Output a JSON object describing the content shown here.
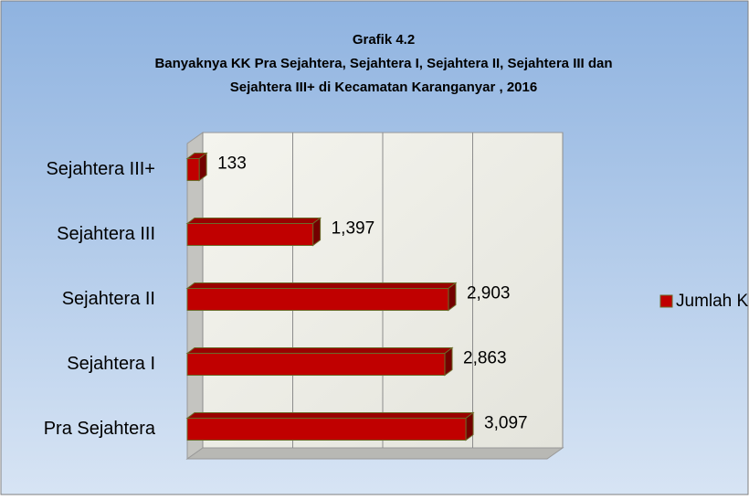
{
  "chart_data": {
    "type": "bar",
    "title": [
      "Grafik 4.2",
      "Banyaknya KK Pra Sejahtera, Sejahtera I, Sejahtera II, Sejahtera III dan",
      "Sejahtera III+ di Kecamatan Karanganyar , 2016"
    ],
    "categories": [
      "Sejahtera III+",
      "Sejahtera III",
      "Sejahtera II",
      "Sejahtera I",
      "Pra Sejahtera"
    ],
    "series": [
      {
        "name": "Jumlah KK",
        "color": "#c00000",
        "values": [
          133,
          1397,
          2903,
          2863,
          3097
        ],
        "value_labels": [
          "133",
          "1,397",
          "2,903",
          "2,863",
          "3,097"
        ]
      }
    ],
    "xlim": [
      0,
      4000
    ],
    "xticks": [
      0,
      1000,
      2000,
      3000,
      4000
    ],
    "grid": true,
    "legend": "right"
  }
}
